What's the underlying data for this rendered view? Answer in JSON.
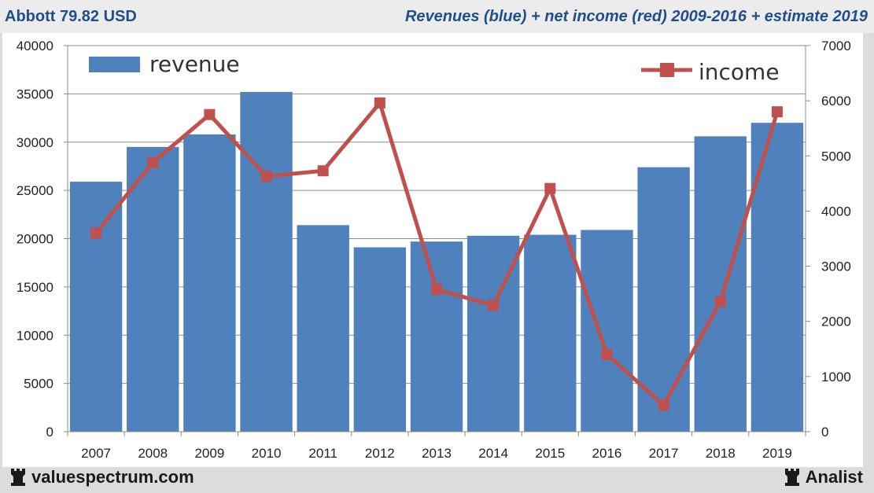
{
  "header": {
    "ticker": "Abbott 79.82 USD",
    "title": "Revenues (blue) + net income (red) 2009-2016 + estimate 2019"
  },
  "footer": {
    "site": "valuespectrum.com",
    "brand": "Analist"
  },
  "icons": {
    "footer_left": "rook-icon",
    "footer_right": "rook-icon"
  },
  "colors": {
    "revenue": "#4f81bd",
    "income": "#c0504d",
    "title": "#1f4e8c"
  },
  "chart_data": {
    "type": "bar",
    "categories": [
      "2007",
      "2008",
      "2009",
      "2010",
      "2011",
      "2012",
      "2013",
      "2014",
      "2015",
      "2016",
      "2017",
      "2018",
      "2019"
    ],
    "series": [
      {
        "name": "revenue",
        "type": "bar",
        "axis": "left",
        "values": [
          25900,
          29500,
          30800,
          35200,
          21400,
          19100,
          19700,
          20300,
          20400,
          20900,
          27400,
          30600,
          32000
        ]
      },
      {
        "name": "income",
        "type": "line",
        "axis": "right",
        "values": [
          3600,
          4880,
          5750,
          4630,
          4730,
          5960,
          2580,
          2290,
          4410,
          1400,
          480,
          2360,
          5800
        ]
      }
    ],
    "y_left": {
      "lim": [
        0,
        40000
      ],
      "ticks": [
        "0",
        "5000",
        "10000",
        "15000",
        "20000",
        "25000",
        "30000",
        "35000",
        "40000"
      ]
    },
    "y_right": {
      "lim": [
        0,
        7000
      ],
      "ticks": [
        "0",
        "1000",
        "2000",
        "3000",
        "4000",
        "5000",
        "6000",
        "7000"
      ]
    },
    "grid": true,
    "legend": {
      "revenue_position": "top-left",
      "income_position": "top-right"
    }
  }
}
